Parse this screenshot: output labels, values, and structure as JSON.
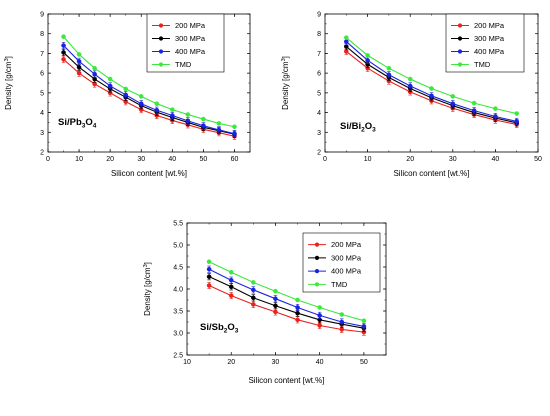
{
  "chart_data": [
    {
      "type": "line",
      "panel_label": {
        "base": "Si/Pb",
        "s1": "3",
        "mid": "O",
        "s2": "4"
      },
      "xlabel": "Silicon content [wt.%]",
      "ylabel": {
        "text": "Density [g/cm",
        "sup": "3",
        "close": "]"
      },
      "xlim": [
        0,
        65
      ],
      "ylim": [
        2,
        9
      ],
      "xticks": [
        0,
        10,
        20,
        30,
        40,
        50,
        60
      ],
      "yticks": [
        2,
        3,
        4,
        5,
        6,
        7,
        8,
        9
      ],
      "x": [
        5,
        10,
        15,
        20,
        25,
        30,
        35,
        40,
        45,
        50,
        55,
        60
      ],
      "series": [
        {
          "name": "200 MPa",
          "color": "#e8231f",
          "values": [
            6.7,
            6.0,
            5.45,
            5.0,
            4.55,
            4.15,
            3.85,
            3.6,
            3.38,
            3.15,
            2.98,
            2.8
          ]
        },
        {
          "name": "300 MPa",
          "color": "#000000",
          "values": [
            7.05,
            6.3,
            5.7,
            5.2,
            4.78,
            4.35,
            4.02,
            3.75,
            3.5,
            3.25,
            3.08,
            2.9
          ]
        },
        {
          "name": "400 MPa",
          "color": "#1a24e0",
          "values": [
            7.4,
            6.6,
            5.95,
            5.35,
            4.9,
            4.45,
            4.12,
            3.85,
            3.58,
            3.33,
            3.12,
            2.93
          ]
        },
        {
          "name": "TMD",
          "color": "#3be83b",
          "values": [
            7.85,
            6.95,
            6.25,
            5.7,
            5.2,
            4.82,
            4.45,
            4.15,
            3.9,
            3.67,
            3.45,
            3.28
          ]
        }
      ],
      "legend_position": "top-right",
      "grid": false
    },
    {
      "type": "line",
      "panel_label": {
        "base": "Si/Bi",
        "s1": "2",
        "mid": "O",
        "s2": "3"
      },
      "xlabel": "Silicon content [wt.%]",
      "ylabel": {
        "text": "Density [g/cm",
        "sup": "3",
        "close": "]"
      },
      "xlim": [
        0,
        50
      ],
      "ylim": [
        2,
        9
      ],
      "xticks": [
        0,
        10,
        20,
        30,
        40,
        50
      ],
      "yticks": [
        2,
        3,
        4,
        5,
        6,
        7,
        8,
        9
      ],
      "x": [
        5,
        10,
        15,
        20,
        25,
        30,
        35,
        40,
        45
      ],
      "series": [
        {
          "name": "200 MPa",
          "color": "#e8231f",
          "values": [
            7.1,
            6.25,
            5.6,
            5.05,
            4.6,
            4.22,
            3.9,
            3.62,
            3.4
          ]
        },
        {
          "name": "300 MPa",
          "color": "#000000",
          "values": [
            7.35,
            6.45,
            5.78,
            5.22,
            4.75,
            4.35,
            4.0,
            3.72,
            3.48
          ]
        },
        {
          "name": "400 MPa",
          "color": "#1a24e0",
          "values": [
            7.6,
            6.65,
            5.92,
            5.35,
            4.85,
            4.45,
            4.1,
            3.8,
            3.55
          ]
        },
        {
          "name": "TMD",
          "color": "#3be83b",
          "values": [
            7.8,
            6.9,
            6.25,
            5.7,
            5.22,
            4.82,
            4.48,
            4.2,
            3.95
          ]
        }
      ],
      "legend_position": "top-right",
      "grid": false
    },
    {
      "type": "line",
      "panel_label": {
        "base": "Si/Sb",
        "s1": "2",
        "mid": "O",
        "s2": "3"
      },
      "xlabel": "Silicon content [wt.%]",
      "ylabel": {
        "text": "Density [g/cm",
        "sup": "3",
        "close": "]"
      },
      "xlim": [
        10,
        55
      ],
      "ylim": [
        2.5,
        5.5
      ],
      "xticks": [
        10,
        20,
        30,
        40,
        50
      ],
      "yticks": [
        2.5,
        3.0,
        3.5,
        4.0,
        4.5,
        5.0,
        5.5
      ],
      "x": [
        15,
        20,
        25,
        30,
        35,
        40,
        45,
        50
      ],
      "series": [
        {
          "name": "200 MPa",
          "color": "#e8231f",
          "values": [
            4.08,
            3.85,
            3.65,
            3.48,
            3.3,
            3.17,
            3.08,
            3.02
          ]
        },
        {
          "name": "300 MPa",
          "color": "#000000",
          "values": [
            4.28,
            4.05,
            3.8,
            3.62,
            3.45,
            3.3,
            3.2,
            3.11
          ]
        },
        {
          "name": "400 MPa",
          "color": "#1a24e0",
          "values": [
            4.45,
            4.2,
            3.98,
            3.78,
            3.58,
            3.4,
            3.25,
            3.15
          ]
        },
        {
          "name": "TMD",
          "color": "#3be83b",
          "values": [
            4.62,
            4.38,
            4.15,
            3.95,
            3.75,
            3.58,
            3.42,
            3.28
          ]
        }
      ],
      "legend_position": "top-right",
      "grid": false
    }
  ]
}
